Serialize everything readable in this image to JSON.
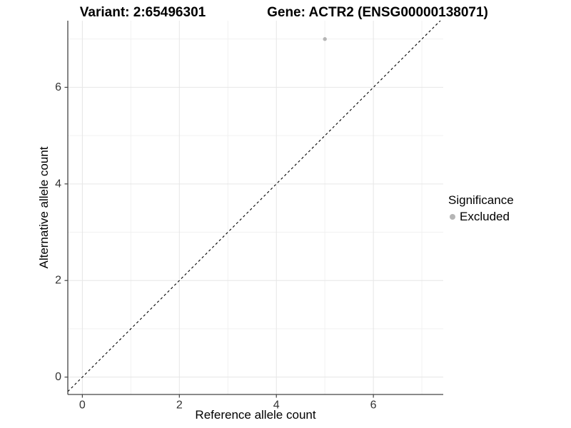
{
  "titles": {
    "variant": "Variant: 2:65496301",
    "gene": "Gene: ACTR2 (ENSG00000138071)"
  },
  "legend": {
    "title": "Significance",
    "items": [
      {
        "label": "Excluded",
        "color": "#b5b5b5"
      }
    ]
  },
  "chart_data": {
    "type": "scatter",
    "title_left": "Variant: 2:65496301",
    "title_right": "Gene: ACTR2 (ENSG00000138071)",
    "xlabel": "Reference allele count",
    "ylabel": "Alternative allele count",
    "xlim": [
      -0.3,
      7.44
    ],
    "ylim": [
      -0.36,
      7.38
    ],
    "x_ticks": [
      0,
      2,
      4,
      6
    ],
    "y_ticks": [
      0,
      2,
      4,
      6
    ],
    "x_minor_ticks": [
      1,
      3,
      5,
      7
    ],
    "y_minor_ticks": [
      1,
      3,
      5,
      7
    ],
    "grid": true,
    "legend_position": "right",
    "series": [
      {
        "name": "Excluded",
        "color": "#b5b5b5",
        "points": [
          {
            "x": 5,
            "y": 7
          }
        ]
      }
    ],
    "reference_line": {
      "slope": 1,
      "intercept": 0,
      "style": "dashed",
      "color": "#000000"
    }
  },
  "colors": {
    "grid_major": "#e6e6e6",
    "grid_minor": "#f1f1f1",
    "axis_line": "#444444",
    "tick_label": "#333333",
    "background": "#ffffff"
  }
}
